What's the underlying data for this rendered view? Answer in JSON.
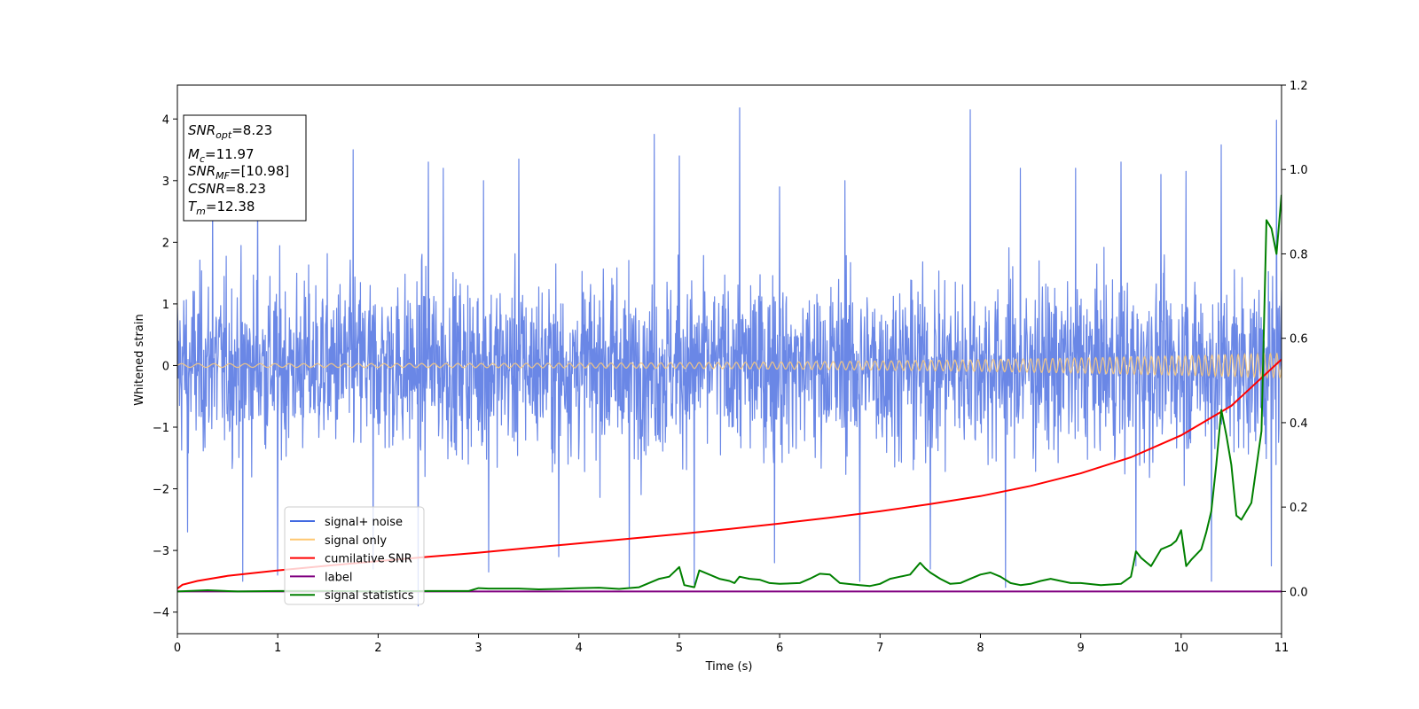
{
  "chart_data": {
    "type": "line",
    "xlabel": "Time (s)",
    "ylabel": "Whitened strain",
    "xlim": [
      0,
      11
    ],
    "ylim": [
      -4.35,
      4.55
    ],
    "y2lim": [
      -0.1,
      1.2
    ],
    "x_ticks": [
      0,
      1,
      2,
      3,
      4,
      5,
      6,
      7,
      8,
      9,
      10,
      11
    ],
    "y_ticks": [
      -4,
      -3,
      -2,
      -1,
      0,
      1,
      2,
      3,
      4
    ],
    "y2_ticks": [
      "0.0",
      "0.2",
      "0.4",
      "0.6",
      "0.8",
      "1.0",
      "1.2"
    ],
    "grid": false,
    "legend_placement": "lower-left",
    "colors": {
      "signal_noise": "#6a87e6",
      "signal_only": "#f5c882",
      "cumulative_snr": "#ff0000",
      "label": "#800080",
      "signal_statistics": "#008000"
    },
    "legend": [
      {
        "name": "signal+ noise",
        "color": "#4169e1"
      },
      {
        "name": "signal only",
        "color": "#ffc870"
      },
      {
        "name": "cumilative SNR",
        "color": "#ff0000"
      },
      {
        "name": "label",
        "color": "#800080"
      },
      {
        "name": "signal statistics",
        "color": "#008000"
      }
    ],
    "info_box": [
      {
        "sym": "SNR",
        "sub": "opt",
        "rest": "=8.23"
      },
      {
        "sym": "M",
        "sub": "c",
        "rest": "=11.97"
      },
      {
        "sym": "SNR",
        "sub": "MF",
        "rest": "=[10.98]"
      },
      {
        "sym": "CSNR",
        "sub": "",
        "rest": "=8.23"
      },
      {
        "sym": "T",
        "sub": "m",
        "rest": "=12.38"
      }
    ],
    "series": [
      {
        "name": "signal+ noise",
        "axis": "left",
        "noise_envelope": {
          "typical": [
            -2.2,
            2.6
          ],
          "extreme": [
            -3.9,
            4.2
          ]
        },
        "peaks": [
          [
            5.6,
            4.18
          ],
          [
            7.9,
            4.15
          ],
          [
            10.95,
            3.98
          ],
          [
            4.75,
            3.75
          ],
          [
            10.4,
            3.58
          ],
          [
            5.0,
            3.4
          ],
          [
            1.75,
            3.5
          ],
          [
            2.5,
            3.3
          ],
          [
            3.4,
            3.35
          ],
          [
            9.4,
            3.3
          ],
          [
            8.4,
            3.2
          ],
          [
            0.35,
            3.05
          ],
          [
            2.65,
            3.2
          ],
          [
            8.95,
            3.2
          ],
          [
            9.8,
            3.1
          ],
          [
            10.05,
            3.15
          ],
          [
            6.65,
            3.0
          ],
          [
            6.0,
            2.9
          ],
          [
            3.05,
            3.0
          ],
          [
            0.8,
            3.1
          ]
        ],
        "troughs": [
          [
            2.4,
            -3.9
          ],
          [
            4.5,
            -3.6
          ],
          [
            6.8,
            -3.5
          ],
          [
            8.25,
            -3.6
          ],
          [
            10.3,
            -3.5
          ],
          [
            0.65,
            -3.5
          ],
          [
            1.0,
            -3.4
          ],
          [
            1.95,
            -3.3
          ],
          [
            3.1,
            -3.35
          ],
          [
            5.15,
            -3.55
          ],
          [
            5.95,
            -3.2
          ],
          [
            7.5,
            -3.3
          ],
          [
            9.55,
            -3.25
          ],
          [
            10.9,
            -3.25
          ],
          [
            0.1,
            -2.7
          ],
          [
            3.8,
            -3.1
          ]
        ]
      },
      {
        "name": "signal only",
        "axis": "left",
        "amplitude_start": 0.03,
        "amplitude_end": 0.2,
        "cycles": 120
      },
      {
        "name": "cumilative SNR",
        "axis": "right",
        "x": [
          0,
          0.05,
          0.2,
          0.5,
          1,
          1.5,
          2,
          2.5,
          3,
          3.5,
          4,
          4.5,
          5,
          5.5,
          6,
          6.5,
          7,
          7.5,
          8,
          8.5,
          9,
          9.5,
          10,
          10.5,
          11
        ],
        "y": [
          0.007,
          0.016,
          0.025,
          0.037,
          0.05,
          0.061,
          0.072,
          0.082,
          0.092,
          0.103,
          0.114,
          0.125,
          0.136,
          0.148,
          0.161,
          0.175,
          0.19,
          0.207,
          0.226,
          0.25,
          0.28,
          0.318,
          0.37,
          0.44,
          0.55
        ]
      },
      {
        "name": "label",
        "axis": "right",
        "x": [
          0,
          11
        ],
        "y": [
          0,
          0
        ]
      },
      {
        "name": "signal statistics",
        "axis": "right",
        "x": [
          0,
          0.3,
          0.6,
          1,
          1.5,
          2,
          2.5,
          2.9,
          3.0,
          3.1,
          3.4,
          3.6,
          3.8,
          4.0,
          4.2,
          4.4,
          4.6,
          4.8,
          4.9,
          5.0,
          5.05,
          5.15,
          5.2,
          5.3,
          5.4,
          5.5,
          5.55,
          5.6,
          5.7,
          5.8,
          5.9,
          6.0,
          6.2,
          6.3,
          6.4,
          6.5,
          6.6,
          6.8,
          6.9,
          7.0,
          7.1,
          7.2,
          7.3,
          7.4,
          7.45,
          7.5,
          7.6,
          7.7,
          7.8,
          7.9,
          8.0,
          8.1,
          8.2,
          8.3,
          8.4,
          8.5,
          8.6,
          8.7,
          8.8,
          8.9,
          9.0,
          9.2,
          9.4,
          9.5,
          9.55,
          9.6,
          9.65,
          9.7,
          9.8,
          9.9,
          9.95,
          10.0,
          10.05,
          10.1,
          10.2,
          10.25,
          10.3,
          10.35,
          10.4,
          10.45,
          10.5,
          10.55,
          10.6,
          10.7,
          10.8,
          10.85,
          10.9,
          10.95,
          11.0
        ],
        "y": [
          0,
          0.003,
          0.0,
          0.001,
          0.001,
          0.0,
          0.001,
          0.001,
          0.008,
          0.007,
          0.007,
          0.005,
          0.006,
          0.008,
          0.009,
          0.006,
          0.01,
          0.03,
          0.035,
          0.058,
          0.015,
          0.01,
          0.05,
          0.04,
          0.03,
          0.025,
          0.02,
          0.035,
          0.03,
          0.028,
          0.02,
          0.018,
          0.02,
          0.03,
          0.042,
          0.04,
          0.02,
          0.015,
          0.013,
          0.018,
          0.03,
          0.035,
          0.04,
          0.068,
          0.055,
          0.045,
          0.03,
          0.018,
          0.02,
          0.03,
          0.04,
          0.045,
          0.035,
          0.02,
          0.015,
          0.018,
          0.025,
          0.03,
          0.025,
          0.02,
          0.02,
          0.015,
          0.018,
          0.035,
          0.095,
          0.08,
          0.07,
          0.06,
          0.1,
          0.11,
          0.12,
          0.145,
          0.06,
          0.075,
          0.1,
          0.14,
          0.19,
          0.3,
          0.43,
          0.37,
          0.3,
          0.18,
          0.17,
          0.21,
          0.38,
          0.88,
          0.86,
          0.8,
          0.94
        ]
      }
    ]
  }
}
